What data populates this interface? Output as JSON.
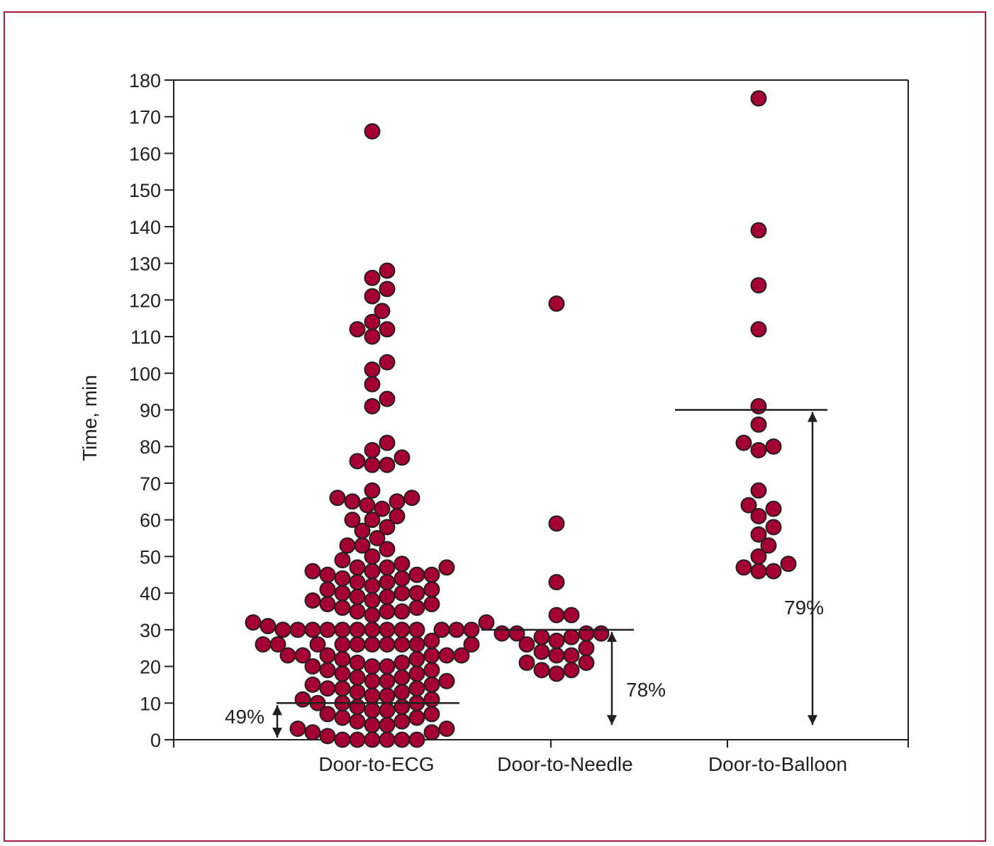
{
  "chart_data": {
    "type": "scatter",
    "title": "",
    "xlabel": "",
    "ylabel": "Time, min",
    "ylim": [
      0,
      180
    ],
    "yticks": [
      0,
      10,
      20,
      30,
      40,
      50,
      60,
      70,
      80,
      90,
      100,
      110,
      120,
      130,
      140,
      150,
      160,
      170,
      180
    ],
    "categories": [
      "Door-to-ECG",
      "Door-to-Needle",
      "Door-to-Balloon"
    ],
    "colors": {
      "marker": "#a50034",
      "marker_edge": "#231f20",
      "frame": "#a8173c",
      "axis": "#231f20"
    },
    "grid": false,
    "series": [
      {
        "category": "Door-to-ECG",
        "values": [
          166,
          128,
          126,
          123,
          121,
          117,
          114,
          112,
          112,
          110,
          103,
          101,
          97,
          93,
          91,
          81,
          79,
          77,
          76,
          75,
          75,
          68,
          66,
          66,
          65,
          65,
          64,
          63,
          61,
          60,
          60,
          58,
          57,
          55,
          53,
          53,
          52,
          50,
          49,
          48,
          47,
          47,
          47,
          46,
          46,
          45,
          45,
          45,
          44,
          44,
          43,
          43,
          42,
          41,
          41,
          40,
          40,
          40,
          39,
          39,
          38,
          38,
          37,
          37,
          36,
          36,
          35,
          35,
          35,
          34,
          32,
          32,
          31,
          30,
          30,
          30,
          30,
          30,
          30,
          30,
          30,
          30,
          30,
          30,
          30,
          30,
          27,
          26,
          26,
          26,
          26,
          26,
          26,
          26,
          26,
          26,
          26,
          23,
          23,
          23,
          23,
          23,
          23,
          22,
          22,
          21,
          21,
          20,
          20,
          20,
          19,
          19,
          18,
          18,
          17,
          17,
          16,
          16,
          16,
          15,
          15,
          14,
          14,
          14,
          13,
          13,
          12,
          12,
          11,
          11,
          10,
          10,
          10,
          9,
          9,
          8,
          8,
          7,
          7,
          6,
          6,
          5,
          5,
          4,
          4,
          3,
          3,
          2,
          2,
          1,
          0,
          0,
          0,
          0,
          0,
          0
        ]
      },
      {
        "category": "Door-to-Needle",
        "values": [
          119,
          59,
          43,
          34,
          34,
          29,
          29,
          29,
          29,
          28,
          28,
          27,
          26,
          25,
          24,
          23,
          23,
          21,
          21,
          19,
          19,
          18
        ]
      },
      {
        "category": "Door-to-Balloon",
        "values": [
          175,
          139,
          124,
          112,
          91,
          86,
          81,
          80,
          79,
          68,
          64,
          63,
          61,
          58,
          56,
          53,
          50,
          48,
          47,
          46,
          46
        ]
      }
    ],
    "reference_lines": [
      {
        "category": "Door-to-ECG",
        "value": 10,
        "label": "49%"
      },
      {
        "category": "Door-to-Needle",
        "value": 30,
        "label": "78%"
      },
      {
        "category": "Door-to-Balloon",
        "value": 90,
        "label": "79%"
      }
    ]
  }
}
